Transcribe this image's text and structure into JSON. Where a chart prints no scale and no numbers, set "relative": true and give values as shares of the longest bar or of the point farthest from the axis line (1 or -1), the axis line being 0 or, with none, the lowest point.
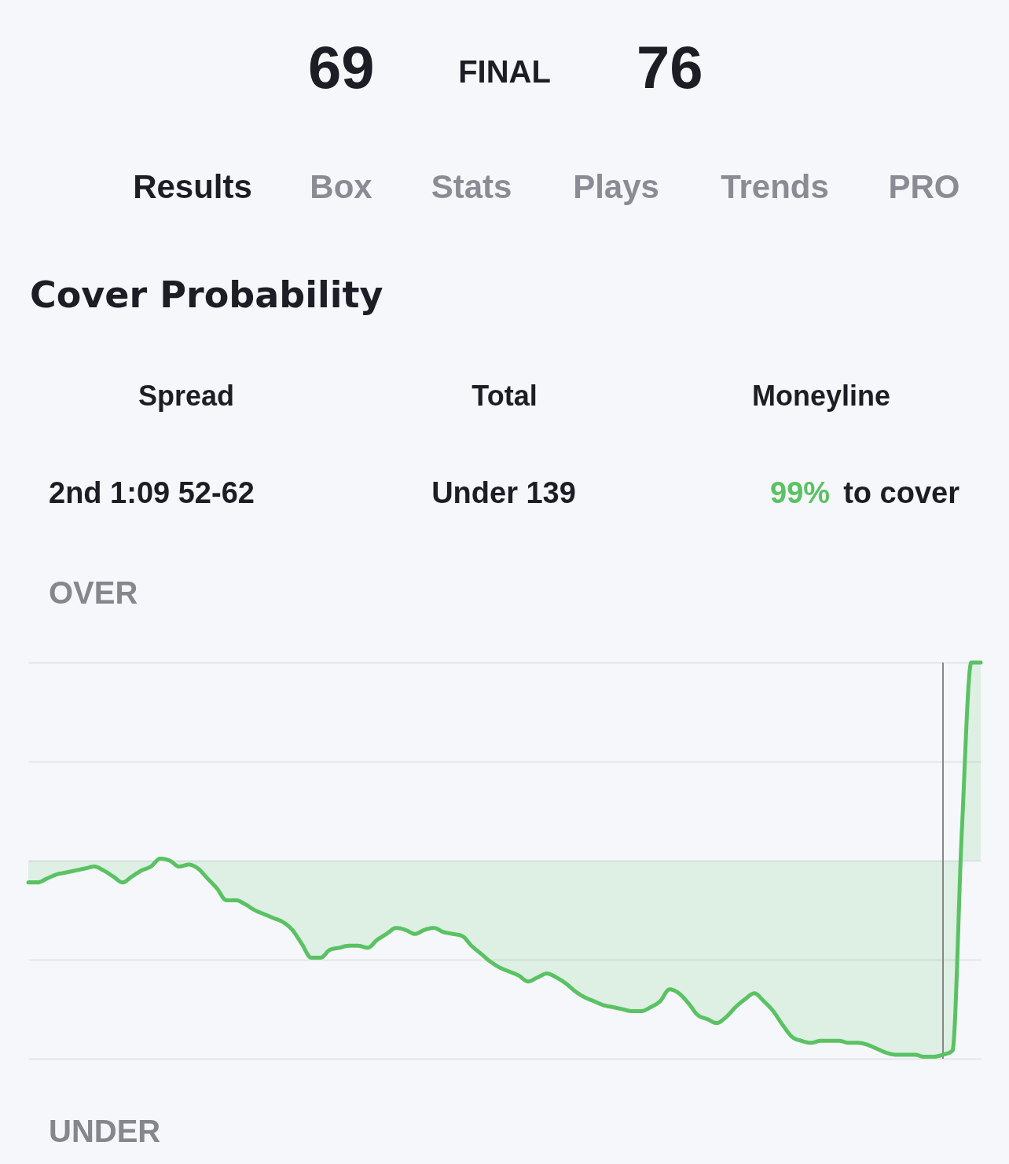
{
  "chart_data": {
    "type": "area",
    "title": "Cover Probability",
    "annotations": [
      "69",
      "FINAL",
      "76",
      "Results",
      "Box",
      "Stats",
      "Plays",
      "Trends",
      "PRO",
      "Spread",
      "Total",
      "Moneyline",
      "2nd 1:09 52-62",
      "Under 139",
      "99%",
      "to cover",
      "OVER",
      "UNDER"
    ],
    "categories": [
      null,
      null,
      null,
      null,
      null,
      null,
      null,
      null,
      null,
      null,
      null,
      null,
      null,
      null,
      null,
      null,
      null,
      null,
      null,
      null,
      null,
      null,
      null,
      null,
      null,
      null,
      null,
      null,
      null,
      null,
      null,
      null,
      null,
      null,
      null,
      null,
      null,
      null,
      null,
      null,
      null,
      null,
      null,
      null,
      null,
      null,
      null,
      null,
      null,
      null,
      null,
      null,
      null,
      null,
      null,
      null,
      null,
      null,
      null,
      null,
      null,
      null,
      null,
      null,
      null,
      null,
      null,
      null,
      null,
      null,
      null,
      null,
      null,
      null,
      null,
      null,
      null,
      null,
      null,
      null,
      null,
      null,
      null,
      null,
      null,
      null,
      null,
      null,
      null,
      null,
      null,
      null,
      null,
      null,
      null,
      null,
      null,
      null,
      null,
      null,
      null,
      null
    ],
    "series": [
      {
        "color": "#5ac263",
        "values": [
          -0.11,
          -0.11,
          -0.09,
          -0.07,
          -0.06,
          -0.05,
          -0.04,
          -0.03,
          -0.05,
          -0.08,
          -0.11,
          -0.08,
          -0.05,
          -0.03,
          0.01,
          0.0,
          -0.03,
          -0.02,
          -0.04,
          -0.09,
          -0.14,
          -0.2,
          -0.2,
          -0.22,
          -0.25,
          -0.27,
          -0.29,
          -0.31,
          -0.35,
          -0.42,
          -0.49,
          -0.49,
          -0.45,
          -0.44,
          -0.43,
          -0.43,
          -0.44,
          -0.4,
          -0.37,
          -0.34,
          -0.35,
          -0.37,
          -0.35,
          -0.34,
          -0.36,
          -0.37,
          -0.38,
          -0.43,
          -0.47,
          -0.51,
          -0.54,
          -0.56,
          -0.58,
          -0.61,
          -0.59,
          -0.57,
          -0.59,
          -0.62,
          -0.66,
          -0.69,
          -0.71,
          -0.73,
          -0.74,
          -0.75,
          -0.76,
          -0.76,
          -0.74,
          -0.71,
          -0.65,
          -0.67,
          -0.72,
          -0.78,
          -0.8,
          -0.82,
          -0.79,
          -0.74,
          -0.7,
          -0.67,
          -0.71,
          -0.76,
          -0.83,
          -0.89,
          -0.91,
          -0.92,
          -0.91,
          -0.91,
          -0.91,
          -0.92,
          -0.92,
          -0.93,
          -0.95,
          -0.97,
          -0.98,
          -0.98,
          -0.98,
          -0.99,
          -0.99,
          -0.98,
          -0.96,
          0.15,
          1.0,
          1.0
        ]
      }
    ],
    "relative": true,
    "grid": "y",
    "marker": "none",
    "line_style": "solid"
  }
}
